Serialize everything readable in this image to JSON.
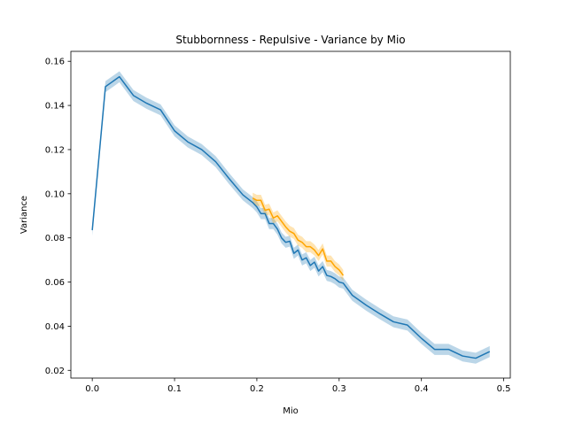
{
  "chart_data": {
    "type": "line",
    "title": "Stubbornness - Repulsive - Variance by Mio",
    "xlabel": "Mio",
    "ylabel": "Variance",
    "xlim": [
      -0.026,
      0.508
    ],
    "ylim": [
      0.0165,
      0.1645
    ],
    "xticks": [
      0.0,
      0.1,
      0.2,
      0.3,
      0.4,
      0.5
    ],
    "xtick_labels": [
      "0.0",
      "0.1",
      "0.2",
      "0.3",
      "0.4",
      "0.5"
    ],
    "yticks": [
      0.02,
      0.04,
      0.06,
      0.08,
      0.1,
      0.12,
      0.14,
      0.16
    ],
    "ytick_labels": [
      "0.02",
      "0.04",
      "0.06",
      "0.08",
      "0.10",
      "0.12",
      "0.14",
      "0.16"
    ],
    "grid": false,
    "legend": "none",
    "series": [
      {
        "color": "#1f77b4",
        "band_width": 0.0025,
        "x": [
          0.0,
          0.016,
          0.033,
          0.05,
          0.066,
          0.083,
          0.1,
          0.116,
          0.133,
          0.15,
          0.166,
          0.183,
          0.195,
          0.2,
          0.205,
          0.21,
          0.215,
          0.22,
          0.225,
          0.23,
          0.235,
          0.24,
          0.245,
          0.25,
          0.255,
          0.26,
          0.265,
          0.27,
          0.275,
          0.28,
          0.285,
          0.29,
          0.295,
          0.3,
          0.305,
          0.316,
          0.333,
          0.35,
          0.366,
          0.383,
          0.4,
          0.416,
          0.433,
          0.45,
          0.466,
          0.483
        ],
        "y": [
          0.0835,
          0.1485,
          0.153,
          0.1445,
          0.141,
          0.138,
          0.1285,
          0.1235,
          0.12,
          0.1145,
          0.107,
          0.0995,
          0.096,
          0.094,
          0.091,
          0.091,
          0.0865,
          0.0865,
          0.084,
          0.08,
          0.078,
          0.0785,
          0.073,
          0.0745,
          0.07,
          0.071,
          0.0675,
          0.069,
          0.065,
          0.067,
          0.063,
          0.0625,
          0.0615,
          0.06,
          0.0595,
          0.054,
          0.0495,
          0.0455,
          0.042,
          0.0405,
          0.0345,
          0.0295,
          0.0295,
          0.0265,
          0.0255,
          0.0285
        ]
      },
      {
        "color": "#ffa500",
        "band_width": 0.0025,
        "x": [
          0.195,
          0.2,
          0.205,
          0.21,
          0.215,
          0.22,
          0.225,
          0.23,
          0.235,
          0.24,
          0.245,
          0.25,
          0.255,
          0.26,
          0.265,
          0.27,
          0.275,
          0.28,
          0.285,
          0.29,
          0.295,
          0.3,
          0.305
        ],
        "y": [
          0.098,
          0.097,
          0.097,
          0.0925,
          0.093,
          0.089,
          0.09,
          0.0875,
          0.085,
          0.083,
          0.082,
          0.079,
          0.078,
          0.076,
          0.076,
          0.0745,
          0.072,
          0.075,
          0.0695,
          0.0695,
          0.067,
          0.0655,
          0.063
        ]
      }
    ]
  }
}
